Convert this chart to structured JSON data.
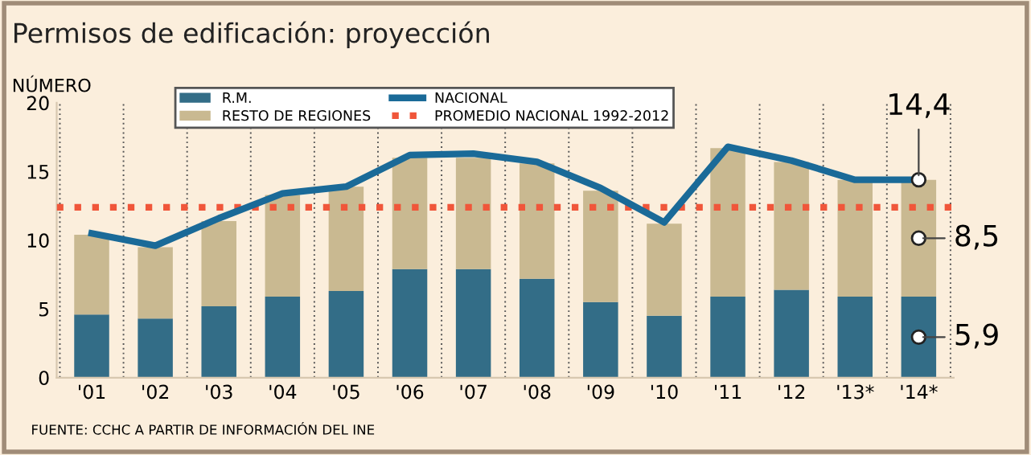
{
  "chart_data": {
    "type": "bar",
    "stacked": true,
    "title": "Permisos de edificación: proyección",
    "ylabel": "NÚMERO",
    "categories": [
      "'01",
      "'02",
      "'03",
      "'04",
      "'05",
      "'06",
      "'07",
      "'08",
      "'09",
      "'10",
      "'11",
      "'12",
      "'13*",
      "'14*"
    ],
    "series": [
      {
        "name": "R.M.",
        "color": "#336d87",
        "values": [
          4.6,
          4.3,
          5.2,
          5.9,
          6.3,
          7.9,
          7.9,
          7.2,
          5.5,
          4.5,
          5.9,
          6.4,
          5.9,
          5.9
        ]
      },
      {
        "name": "RESTO DE REGIONES",
        "color": "#c9b991",
        "values": [
          5.8,
          5.2,
          6.2,
          7.4,
          7.6,
          8.1,
          8.1,
          8.4,
          8.1,
          6.7,
          10.8,
          9.3,
          8.5,
          8.5
        ]
      },
      {
        "name": "NACIONAL",
        "type": "line",
        "color": "#1a6a98",
        "values": [
          10.5,
          9.6,
          11.6,
          13.4,
          13.9,
          16.2,
          16.3,
          15.7,
          13.8,
          11.3,
          16.8,
          15.8,
          14.4,
          14.4
        ]
      }
    ],
    "ref_lines": [
      {
        "axis": "y",
        "value": 12.4,
        "label": "PROMEDIO NACIONAL 1992-2012",
        "color": "#f0563a",
        "line_style": "dotted"
      }
    ],
    "annotations": [
      {
        "text": "14,4",
        "x": "'14*",
        "y": 14.4
      },
      {
        "text": "8,5",
        "x": "'14*",
        "y": 10.15
      },
      {
        "text": "5,9",
        "x": "'14*",
        "y": 2.95
      },
      "FUENTE: CCHC A PARTIR DE INFORMACIÓN DEL INE"
    ],
    "ylim": [
      0,
      20
    ],
    "yticks": [
      0,
      5,
      10,
      15,
      20
    ],
    "grid": "x",
    "legend": "top",
    "line_style": "solid",
    "marker": "none"
  }
}
